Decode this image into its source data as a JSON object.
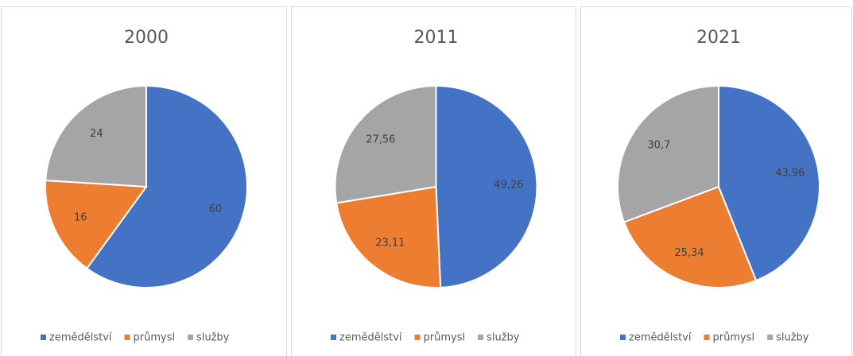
{
  "chart_data": [
    {
      "type": "pie",
      "title": "2000",
      "categories": [
        "zemědělství",
        "průmysl",
        "služby"
      ],
      "values": [
        60,
        16,
        24
      ],
      "colors": [
        "#4472c4",
        "#ed7d31",
        "#a5a5a5"
      ]
    },
    {
      "type": "pie",
      "title": "2011",
      "categories": [
        "zemědělství",
        "průmysl",
        "služby"
      ],
      "values": [
        49.26,
        23.11,
        27.56
      ],
      "value_labels": [
        "49,26",
        "23,11",
        "27,56"
      ],
      "colors": [
        "#4472c4",
        "#ed7d31",
        "#a5a5a5"
      ]
    },
    {
      "type": "pie",
      "title": "2021",
      "categories": [
        "zemědělství",
        "průmysl",
        "služby"
      ],
      "values": [
        43.96,
        25.34,
        30.7
      ],
      "value_labels": [
        "43,96",
        "25,34",
        "30,7"
      ],
      "colors": [
        "#4472c4",
        "#ed7d31",
        "#a5a5a5"
      ]
    }
  ]
}
